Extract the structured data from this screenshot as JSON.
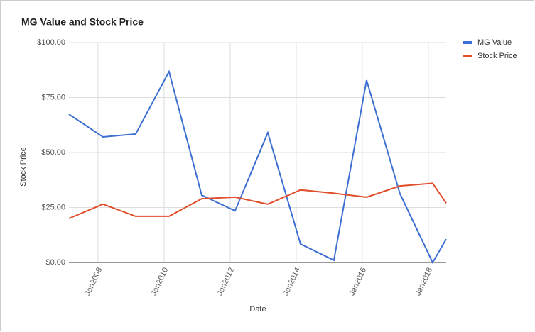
{
  "chart_data": {
    "type": "line",
    "title": "MG Value and Stock Price",
    "x_label": "Date",
    "y_label": "Stock Price",
    "x": [
      2007.12,
      2008.15,
      2009.14,
      2010.15,
      2011.14,
      2012.15,
      2013.14,
      2014.13,
      2015.14,
      2016.13,
      2017.14,
      2018.13,
      2018.54
    ],
    "series": [
      {
        "name": "MG Value",
        "color": "#3c6fd1",
        "values": [
          67.4,
          57.1,
          58.4,
          86.8,
          30.6,
          23.5,
          59,
          8.4,
          1,
          82.9,
          31.3,
          0,
          10.6
        ]
      },
      {
        "name": "Stock Price",
        "color": "#e04e2b",
        "values": [
          20,
          26.5,
          21,
          21,
          29,
          29.7,
          26.5,
          33,
          31.5,
          29.7,
          34.8,
          36,
          27
        ]
      }
    ],
    "xlim": [
      2007.12,
      2018.54
    ],
    "xticks": [
      {
        "value": 2008,
        "label": "Jan2008"
      },
      {
        "value": 2010,
        "label": "Jan2010"
      },
      {
        "value": 2012,
        "label": "Jan2012"
      },
      {
        "value": 2014,
        "label": "Jan2014"
      },
      {
        "value": 2016,
        "label": "Jan2016"
      },
      {
        "value": 2018,
        "label": "Jan2018"
      }
    ],
    "ylim": [
      0,
      100
    ],
    "yticks": [
      {
        "value": 0,
        "label": "$0.00"
      },
      {
        "value": 25,
        "label": "$25.00"
      },
      {
        "value": 50,
        "label": "$50.00"
      },
      {
        "value": 75,
        "label": "$75.00"
      },
      {
        "value": 100,
        "label": "$100.00"
      }
    ],
    "grid": true,
    "legend": "right"
  }
}
